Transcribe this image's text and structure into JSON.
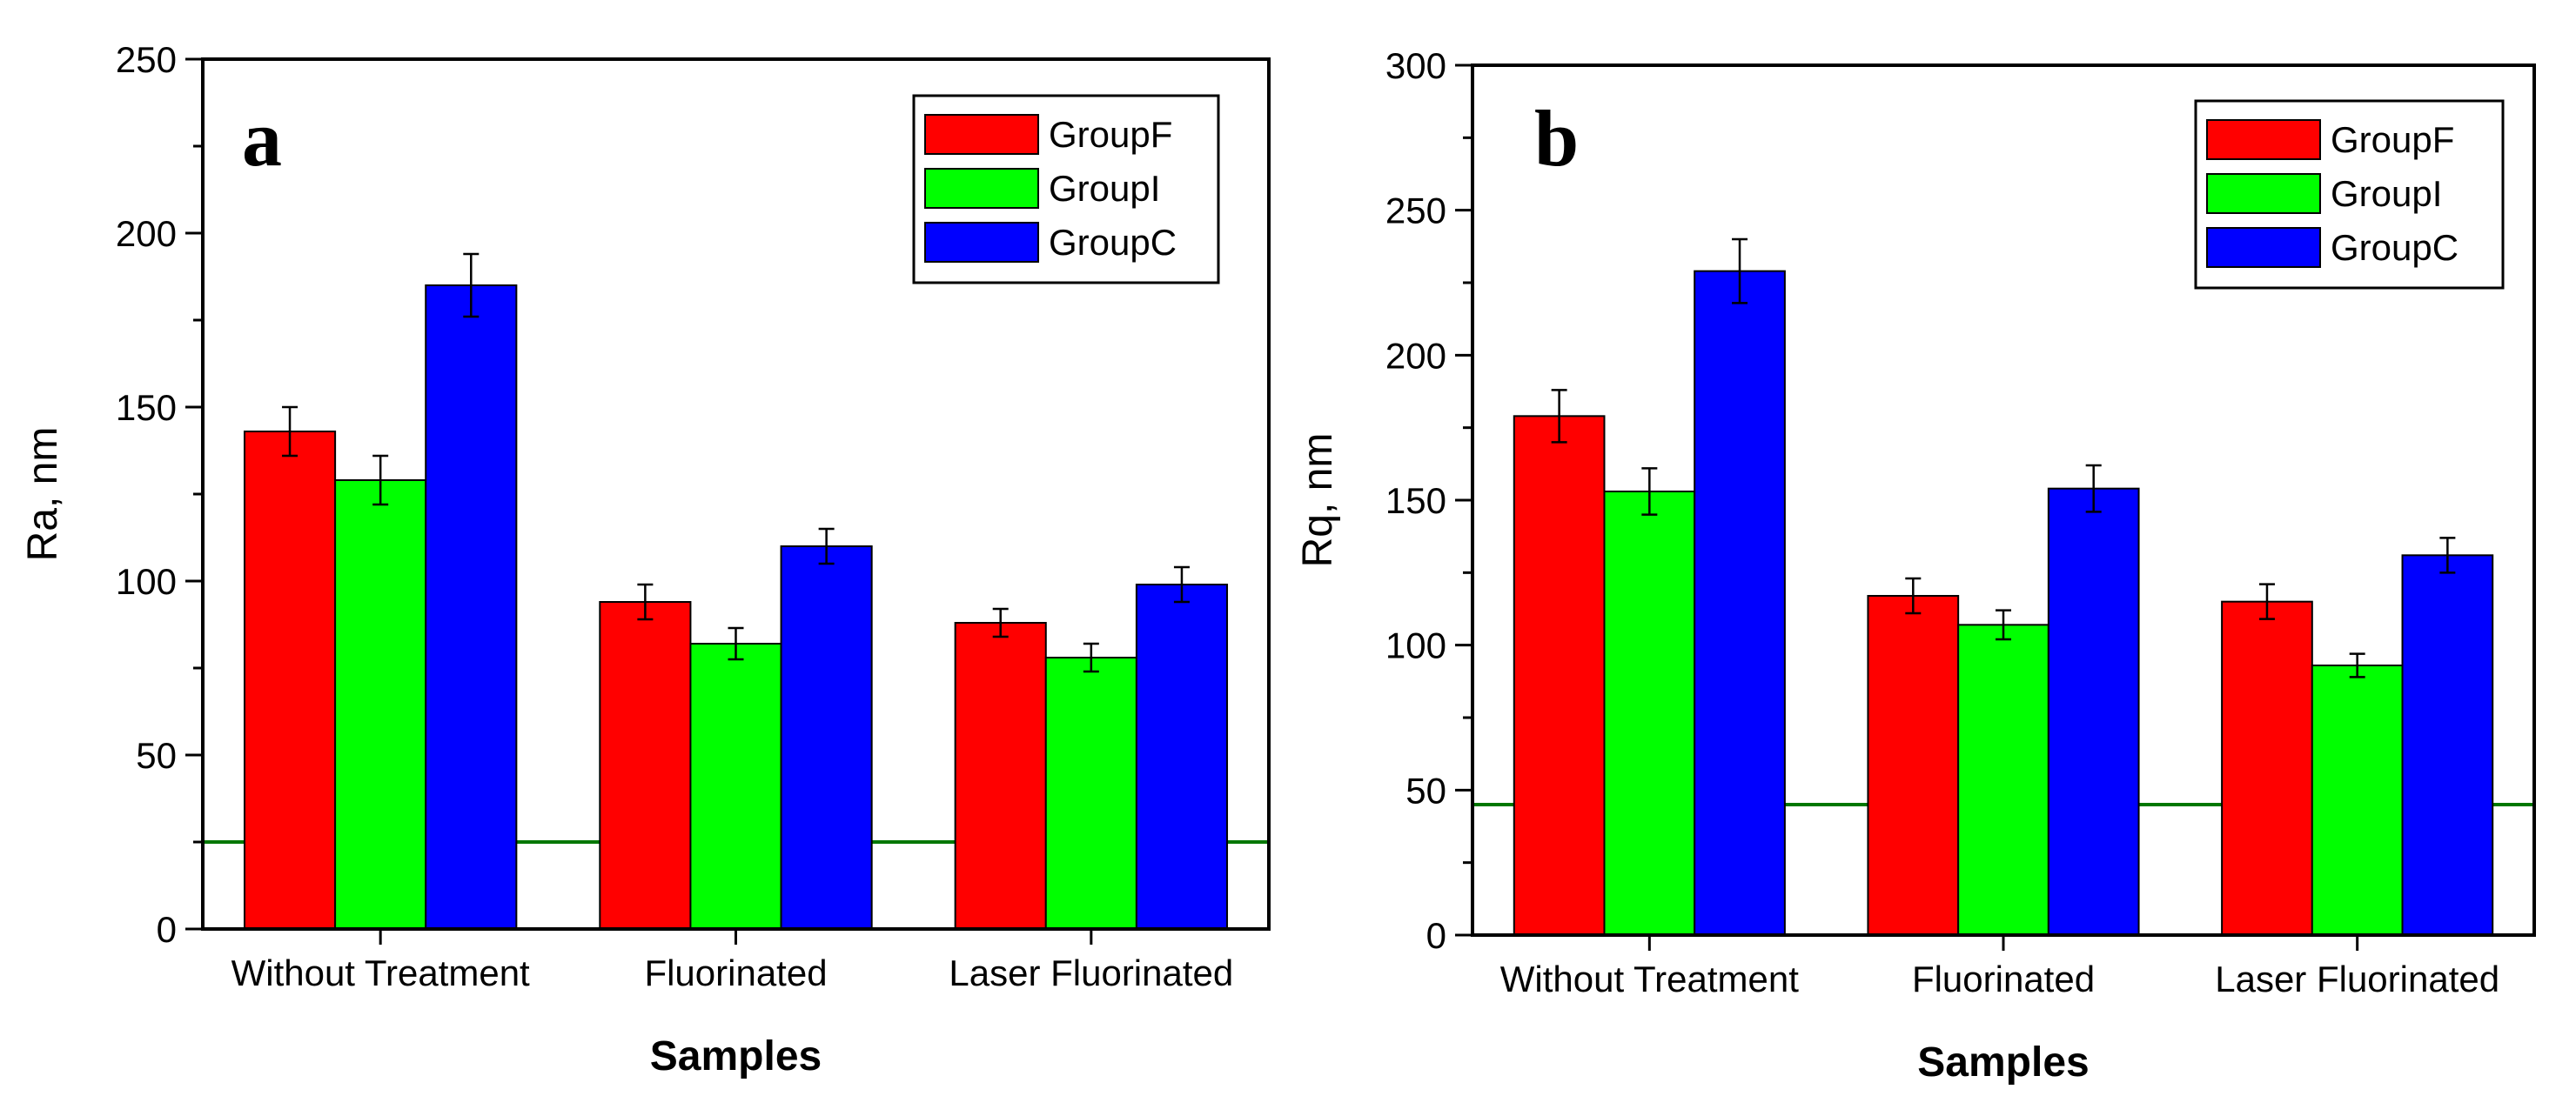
{
  "figure": {
    "background": "#ffffff"
  },
  "chart_data": [
    {
      "type": "bar",
      "panel_label": "a",
      "title": "",
      "xlabel": "Samples",
      "ylabel": "Ra, nm",
      "ylim": [
        0,
        250
      ],
      "yticks": [
        "0",
        "50",
        "100",
        "150",
        "200",
        "250"
      ],
      "categories": [
        "Without Treatment",
        "Fluorinated",
        "Laser Fluorinated"
      ],
      "series": [
        {
          "name": "GroupF",
          "color": "#ff0000",
          "values": [
            143,
            94,
            88
          ],
          "errors": [
            7,
            5,
            4
          ]
        },
        {
          "name": "GroupI",
          "color": "#00ff00",
          "values": [
            129,
            82,
            78
          ],
          "errors": [
            7,
            4.5,
            4
          ]
        },
        {
          "name": "GroupC",
          "color": "#0000ff",
          "values": [
            185,
            110,
            99
          ],
          "errors": [
            9,
            5,
            5
          ]
        }
      ],
      "reference_line": {
        "value": 25,
        "color": "#007700"
      },
      "legend": {
        "placement": "top-right"
      },
      "grid": false
    },
    {
      "type": "bar",
      "panel_label": "b",
      "title": "",
      "xlabel": "Samples",
      "ylabel": "Rq, nm",
      "ylim": [
        0,
        300
      ],
      "yticks": [
        "0",
        "50",
        "100",
        "150",
        "200",
        "250",
        "300"
      ],
      "categories": [
        "Without Treatment",
        "Fluorinated",
        "Laser Fluorinated"
      ],
      "series": [
        {
          "name": "GroupF",
          "color": "#ff0000",
          "values": [
            179,
            117,
            115
          ],
          "errors": [
            9,
            6,
            6
          ]
        },
        {
          "name": "GroupI",
          "color": "#00ff00",
          "values": [
            153,
            107,
            93
          ],
          "errors": [
            8,
            5,
            4
          ]
        },
        {
          "name": "GroupC",
          "color": "#0000ff",
          "values": [
            229,
            154,
            131
          ],
          "errors": [
            11,
            8,
            6
          ]
        }
      ],
      "reference_line": {
        "value": 45,
        "color": "#007700"
      },
      "legend": {
        "placement": "top-right"
      },
      "grid": false
    }
  ]
}
